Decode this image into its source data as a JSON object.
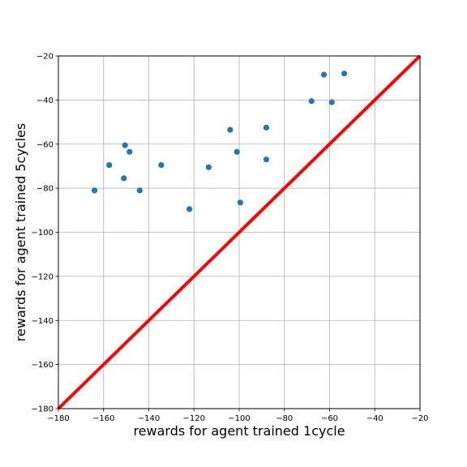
{
  "chart_data": {
    "type": "scatter",
    "title": "",
    "xlabel": "rewards for agent trained 1cycle",
    "ylabel": "rewards for agent trained 5cycles",
    "xlim": [
      -180,
      -20
    ],
    "ylim": [
      -180,
      -20
    ],
    "xticks": [
      -180,
      -160,
      -140,
      -120,
      -100,
      -80,
      -60,
      -40,
      -20
    ],
    "yticks": [
      -180,
      -160,
      -140,
      -120,
      -100,
      -80,
      -60,
      -40,
      -20
    ],
    "xtick_labels": [
      "−180",
      "−160",
      "−140",
      "−120",
      "−100",
      "−80",
      "−60",
      "−40",
      "−20"
    ],
    "ytick_labels": [
      "−180",
      "−160",
      "−140",
      "−120",
      "−100",
      "−80",
      "−60",
      "−40",
      "−20"
    ],
    "grid": true,
    "marker_color": "#1f77b4",
    "reference_line": {
      "x": [
        -180,
        -20
      ],
      "y": [
        -180,
        -20
      ],
      "color": "#ff0000"
    },
    "points": [
      {
        "x": -164,
        "y": -81
      },
      {
        "x": -157.5,
        "y": -69.5
      },
      {
        "x": -151,
        "y": -75.5
      },
      {
        "x": -150.5,
        "y": -60.5
      },
      {
        "x": -148.5,
        "y": -63.5
      },
      {
        "x": -144,
        "y": -81
      },
      {
        "x": -134.5,
        "y": -69.5
      },
      {
        "x": -122,
        "y": -89.5
      },
      {
        "x": -113.5,
        "y": -70.5
      },
      {
        "x": -104,
        "y": -53.5
      },
      {
        "x": -101,
        "y": -63.5
      },
      {
        "x": -99.5,
        "y": -86.5
      },
      {
        "x": -88,
        "y": -52.5
      },
      {
        "x": -88,
        "y": -67
      },
      {
        "x": -68,
        "y": -40.5
      },
      {
        "x": -62.5,
        "y": -28.5
      },
      {
        "x": -59,
        "y": -41
      },
      {
        "x": -53.5,
        "y": -28
      }
    ]
  }
}
